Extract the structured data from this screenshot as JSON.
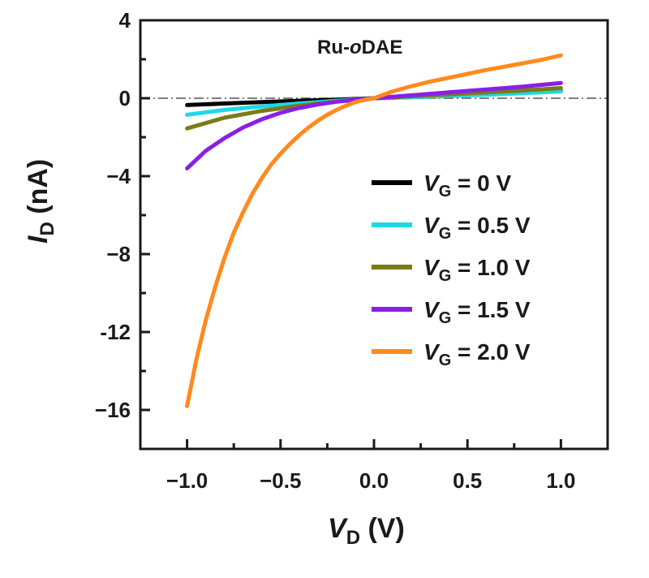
{
  "chart_data": {
    "type": "line",
    "annotation": "Ru-oDAE",
    "annotation_parts": {
      "prefix": "Ru-",
      "italic": "o",
      "suffix": "DAE"
    },
    "xlabel": {
      "symbol": "V",
      "subscript": "D",
      "unit": "(V)"
    },
    "ylabel": {
      "symbol": "I",
      "subscript": "D",
      "unit": "(nA)"
    },
    "xlim": [
      -1.25,
      1.25
    ],
    "ylim": [
      -18,
      4
    ],
    "xticks": [
      -1.0,
      -0.5,
      0.0,
      0.5,
      1.0
    ],
    "xtick_labels": [
      "−1.0",
      "−0.5",
      "0.0",
      "0.5",
      "1.0"
    ],
    "yticks": [
      4,
      0,
      -4,
      -8,
      -12,
      -16
    ],
    "ytick_labels": [
      "4",
      "0",
      "−4",
      "−8",
      "-12",
      "−16"
    ],
    "zero_line": "dash-dot",
    "grid": false,
    "legend_position": "right",
    "series": [
      {
        "label": {
          "symbol": "V",
          "subscript": "G",
          "text": " = 0 V"
        },
        "color": "#000000",
        "x": [
          -1.0,
          -0.8,
          -0.6,
          -0.4,
          -0.2,
          0.0,
          0.2,
          0.4,
          0.6,
          0.8,
          1.0
        ],
        "y": [
          -0.35,
          -0.27,
          -0.2,
          -0.13,
          -0.07,
          0.0,
          0.06,
          0.12,
          0.2,
          0.28,
          0.38
        ]
      },
      {
        "label": {
          "symbol": "V",
          "subscript": "G",
          "text": " = 0.5 V"
        },
        "color": "#1fd8e6",
        "x": [
          -1.0,
          -0.8,
          -0.6,
          -0.4,
          -0.2,
          0.0,
          0.2,
          0.4,
          0.6,
          0.8,
          1.0
        ],
        "y": [
          -0.85,
          -0.6,
          -0.42,
          -0.27,
          -0.13,
          0.0,
          0.06,
          0.12,
          0.18,
          0.26,
          0.35
        ]
      },
      {
        "label": {
          "symbol": "V",
          "subscript": "G",
          "text": " = 1.0 V"
        },
        "color": "#7a7a1a",
        "x": [
          -1.0,
          -0.8,
          -0.6,
          -0.4,
          -0.2,
          0.0,
          0.2,
          0.4,
          0.6,
          0.8,
          1.0
        ],
        "y": [
          -1.55,
          -1.0,
          -0.65,
          -0.38,
          -0.17,
          0.0,
          0.1,
          0.2,
          0.3,
          0.4,
          0.52
        ]
      },
      {
        "label": {
          "symbol": "V",
          "subscript": "G",
          "text": " = 1.5 V"
        },
        "color": "#8a1fe6",
        "x": [
          -1.0,
          -0.9,
          -0.8,
          -0.7,
          -0.6,
          -0.5,
          -0.4,
          -0.3,
          -0.2,
          -0.1,
          0.0,
          0.2,
          0.4,
          0.6,
          0.8,
          1.0
        ],
        "y": [
          -3.6,
          -2.7,
          -2.05,
          -1.5,
          -1.08,
          -0.75,
          -0.5,
          -0.32,
          -0.18,
          -0.08,
          0.0,
          0.15,
          0.3,
          0.45,
          0.6,
          0.78
        ]
      },
      {
        "label": {
          "symbol": "V",
          "subscript": "G",
          "text": " = 2.0 V"
        },
        "color": "#ff8a1e",
        "x": [
          -1.0,
          -0.95,
          -0.9,
          -0.85,
          -0.8,
          -0.75,
          -0.7,
          -0.65,
          -0.6,
          -0.55,
          -0.5,
          -0.45,
          -0.4,
          -0.35,
          -0.3,
          -0.25,
          -0.2,
          -0.15,
          -0.1,
          -0.05,
          0.0,
          0.1,
          0.2,
          0.3,
          0.4,
          0.5,
          0.6,
          0.7,
          0.8,
          0.9,
          1.0
        ],
        "y": [
          -15.8,
          -13.4,
          -11.4,
          -9.7,
          -8.2,
          -6.9,
          -5.85,
          -4.9,
          -4.1,
          -3.4,
          -2.85,
          -2.35,
          -1.9,
          -1.5,
          -1.15,
          -0.85,
          -0.6,
          -0.38,
          -0.2,
          -0.08,
          0.0,
          0.35,
          0.62,
          0.85,
          1.05,
          1.25,
          1.45,
          1.62,
          1.8,
          1.98,
          2.2
        ]
      }
    ]
  }
}
